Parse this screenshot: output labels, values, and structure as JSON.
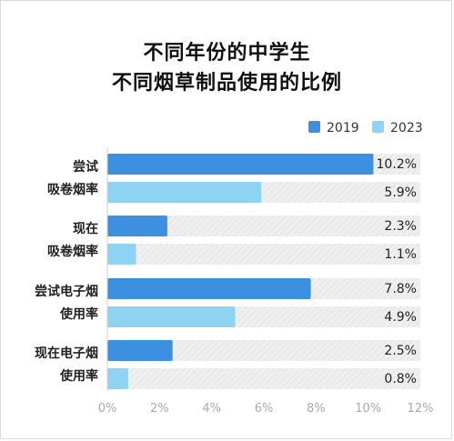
{
  "title_line1": "不同年份的中学生",
  "title_line2": "不同烟草制品使用的比例",
  "chart_data": {
    "type": "bar",
    "orientation": "horizontal",
    "categories": [
      [
        "尝试",
        "吸卷烟率"
      ],
      [
        "现在",
        "吸卷烟率"
      ],
      [
        "尝试电子烟",
        "使用率"
      ],
      [
        "现在电子烟",
        "使用率"
      ]
    ],
    "series": [
      {
        "name": "2019",
        "color": "#3d8fe0",
        "values": [
          10.2,
          2.3,
          7.8,
          2.5
        ],
        "labels": [
          "10.2%",
          "2.3%",
          "7.8%",
          "2.5%"
        ]
      },
      {
        "name": "2023",
        "color": "#8fd3f2",
        "values": [
          5.9,
          1.1,
          4.9,
          0.8
        ],
        "labels": [
          "5.9%",
          "1.1%",
          "4.9%",
          "0.8%"
        ]
      }
    ],
    "xlim": [
      0,
      12
    ],
    "xticks": [
      "0%",
      "2%",
      "4%",
      "6%",
      "8%",
      "10%",
      "12%"
    ],
    "legend_position": "top-right",
    "track_color": "#e9e9e9"
  }
}
